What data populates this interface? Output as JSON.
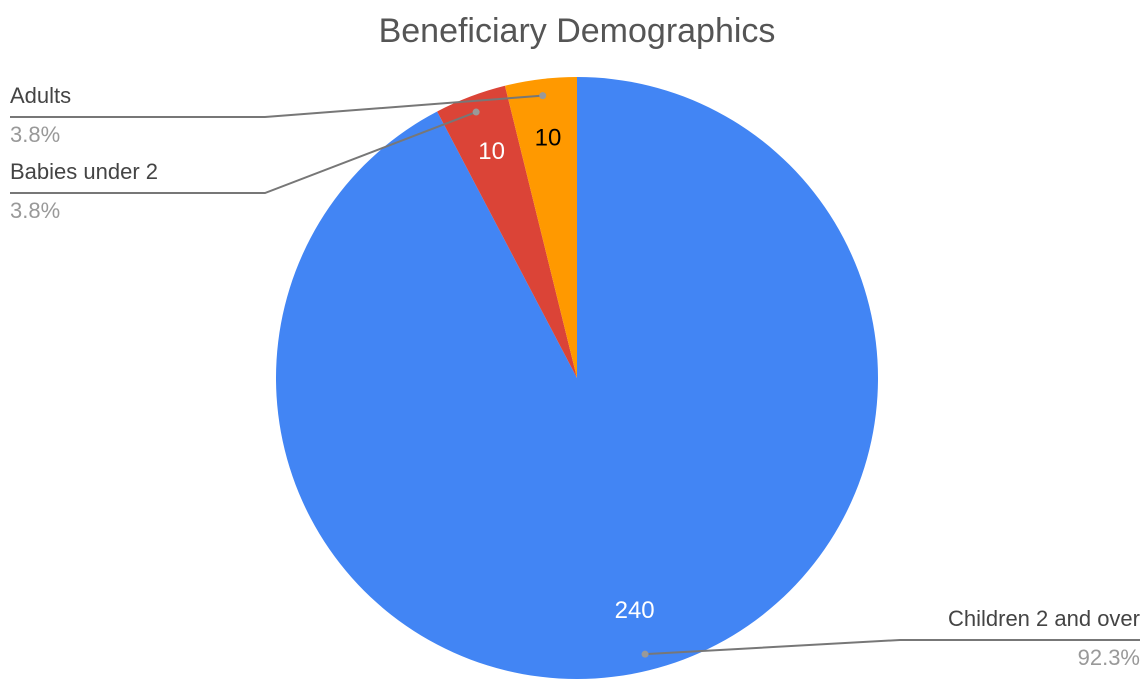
{
  "chart_data": {
    "type": "pie",
    "title": "Beneficiary Demographics",
    "categories": [
      "Children 2 and over",
      "Babies under 2",
      "Adults"
    ],
    "values": [
      240,
      10,
      10
    ],
    "percent_labels": [
      "92.3%",
      "3.8%",
      "3.8%"
    ],
    "colors": [
      "#4285f4",
      "#db4437",
      "#ff9900"
    ],
    "start_angle": 0,
    "direction": "clockwise"
  }
}
